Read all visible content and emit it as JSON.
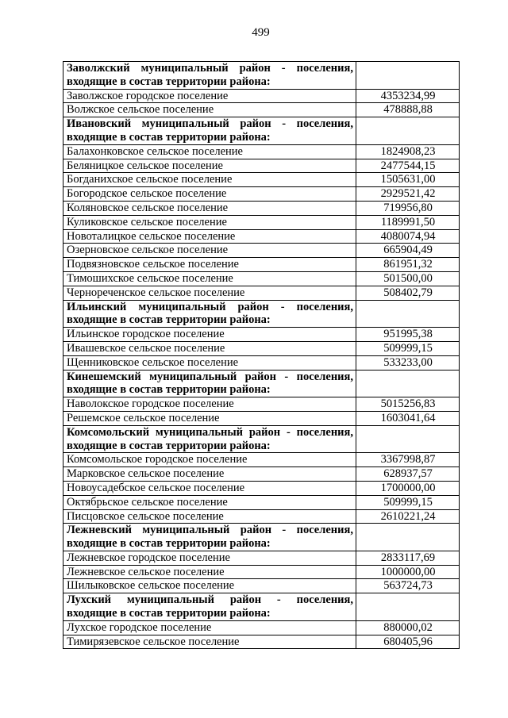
{
  "page": {
    "number": "499"
  },
  "table": {
    "rows": [
      {
        "type": "section",
        "label": "Заволжский муниципальный район - поселения, входящие в состав территории района:",
        "value": ""
      },
      {
        "type": "data",
        "label": "Заволжское городское поселение",
        "value": "4353234,99"
      },
      {
        "type": "data",
        "label": "Волжское сельское поселение",
        "value": "478888,88"
      },
      {
        "type": "section",
        "label": "Ивановский муниципальный район - поселения, входящие в состав территории района:",
        "value": ""
      },
      {
        "type": "data",
        "label": "Балахонковское сельское поселение",
        "value": "1824908,23"
      },
      {
        "type": "data",
        "label": "Беляницкое сельское поселение",
        "value": "2477544,15"
      },
      {
        "type": "data",
        "label": "Богданихское сельское поселение",
        "value": "1505631,00"
      },
      {
        "type": "data",
        "label": "Богородское сельское поселение",
        "value": "2929521,42"
      },
      {
        "type": "data",
        "label": "Коляновское сельское поселение",
        "value": "719956,80"
      },
      {
        "type": "data",
        "label": "Куликовское сельское поселение",
        "value": "1189991,50"
      },
      {
        "type": "data",
        "label": "Новоталицкое сельское поселение",
        "value": "4080074,94"
      },
      {
        "type": "data",
        "label": "Озерновское сельское поселение",
        "value": "665904,49"
      },
      {
        "type": "data",
        "label": "Подвязновское сельское поселение",
        "value": "861951,32"
      },
      {
        "type": "data",
        "label": "Тимошихское сельское поселение",
        "value": "501500,00"
      },
      {
        "type": "data",
        "label": "Чернореченское сельское поселение",
        "value": "508402,79"
      },
      {
        "type": "section",
        "label": "Ильинский муниципальный район - поселения, входящие в состав территории района:",
        "value": ""
      },
      {
        "type": "data",
        "label": "Ильинское городское поселение",
        "value": "951995,38"
      },
      {
        "type": "data",
        "label": "Ивашевское сельское поселение",
        "value": "509999,15"
      },
      {
        "type": "data",
        "label": "Щенниковское сельское поселение",
        "value": "533233,00"
      },
      {
        "type": "section",
        "label": "Кинешемский муниципальный район - поселения, входящие в состав территории района:",
        "value": ""
      },
      {
        "type": "data",
        "label": "Наволокское городское поселение",
        "value": "5015256,83"
      },
      {
        "type": "data",
        "label": "Решемское сельское поселение",
        "value": "1603041,64"
      },
      {
        "type": "section",
        "label": "Комсомольский муниципальный район - поселения, входящие в состав территории района:",
        "value": ""
      },
      {
        "type": "data",
        "label": "Комсомольское городское поселение",
        "value": "3367998,87"
      },
      {
        "type": "data",
        "label": "Марковское сельское поселение",
        "value": "628937,57"
      },
      {
        "type": "data",
        "label": "Новоусадебское сельское поселение",
        "value": "1700000,00"
      },
      {
        "type": "data",
        "label": "Октябрьское сельское поселение",
        "value": "509999,15"
      },
      {
        "type": "data",
        "label": "Писцовское сельское поселение",
        "value": "2610221,24"
      },
      {
        "type": "section",
        "label": "Лежневский муниципальный район - поселения, входящие в состав территории района:",
        "value": ""
      },
      {
        "type": "data",
        "label": "Лежневское городское поселение",
        "value": "2833117,69"
      },
      {
        "type": "data",
        "label": "Лежневское сельское поселение",
        "value": "1000000,00"
      },
      {
        "type": "data",
        "label": "Шилыковское сельское поселение",
        "value": "563724,73"
      },
      {
        "type": "section",
        "label": "Лухский муниципальный район - поселения, входящие в состав территории района:",
        "value": ""
      },
      {
        "type": "data",
        "label": "Лухское городское поселение",
        "value": "880000,02"
      },
      {
        "type": "data",
        "label": "Тимирязевское сельское поселение",
        "value": "680405,96"
      }
    ]
  }
}
